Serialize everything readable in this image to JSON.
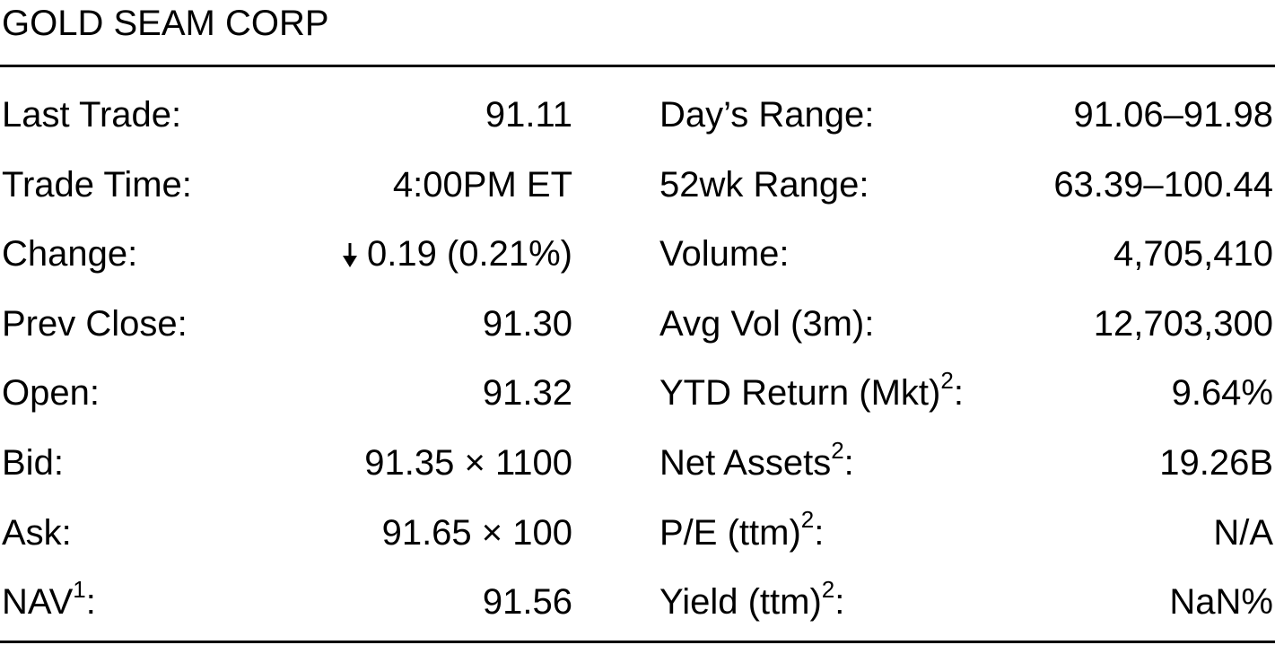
{
  "header": {
    "title": "GOLD SEAM CORP"
  },
  "table": {
    "rows": [
      {
        "left": {
          "label": "Last Trade:",
          "value": "91.11"
        },
        "right": {
          "label": "Day’s Range:",
          "value": "91.06–91.98"
        }
      },
      {
        "left": {
          "label": "Trade Time:",
          "value": "4:00PM ET"
        },
        "right": {
          "label": "52wk Range:",
          "value": "63.39–100.44"
        }
      },
      {
        "left": {
          "label": "Change:",
          "value": "0.19 (0.21%)",
          "trend": "down"
        },
        "right": {
          "label": "Volume:",
          "value": "4,705,410"
        }
      },
      {
        "left": {
          "label": "Prev Close:",
          "value": "91.30"
        },
        "right": {
          "label": "Avg Vol (3m):",
          "value": "12,703,300"
        }
      },
      {
        "left": {
          "label": "Open:",
          "value": "91.32"
        },
        "right": {
          "label": "YTD Return (Mkt)",
          "note": "2",
          "tail": ":",
          "value": "9.64%"
        }
      },
      {
        "left": {
          "label": "Bid:",
          "value": "91.35 × 1100"
        },
        "right": {
          "label": "Net Assets",
          "note": "2",
          "tail": ":",
          "value": "19.26B"
        }
      },
      {
        "left": {
          "label": "Ask:",
          "value": "91.65 × 100"
        },
        "right": {
          "label": "P/E (ttm)",
          "note": "2",
          "tail": ":",
          "value": "N/A"
        }
      },
      {
        "left": {
          "label": "NAV",
          "note": "1",
          "tail": ":",
          "value": "91.56"
        },
        "right": {
          "label": "Yield (ttm)",
          "note": "2",
          "tail": ":",
          "value": "NaN%"
        }
      }
    ]
  }
}
